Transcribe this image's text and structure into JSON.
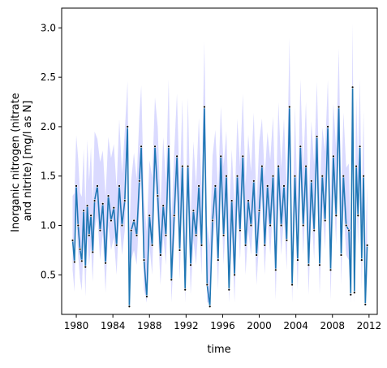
{
  "chart_data": {
    "type": "line",
    "xlabel": "time",
    "ylabel_lines": [
      "Inorganic nitrogen (nitrate",
      "and nitrite) [mg/l as N]"
    ],
    "xlim": [
      1978.4,
      2012.9
    ],
    "ylim": [
      0.1,
      3.2
    ],
    "x_ticks": [
      1980,
      1984,
      1988,
      1992,
      1996,
      2000,
      2004,
      2008,
      2012
    ],
    "y_ticks": [
      0.5,
      1.0,
      1.5,
      2.0,
      2.5,
      3.0
    ],
    "x_tick_labels": [
      "1980",
      "1984",
      "1988",
      "1992",
      "1996",
      "2000",
      "2004",
      "2008",
      "2012"
    ],
    "y_tick_labels": [
      "0.5",
      "1.0",
      "1.5",
      "2.0",
      "2.5",
      "3.0"
    ],
    "grid": false,
    "colors": {
      "line": "#1f77b4",
      "band": "#d4d4ff",
      "points": "#000000"
    },
    "series": [
      {
        "values": [
          [
            1979.6,
            0.85
          ],
          [
            1979.8,
            0.63
          ],
          [
            1980.0,
            1.4
          ],
          [
            1980.2,
            1.0
          ],
          [
            1980.4,
            0.76
          ],
          [
            1980.6,
            0.64
          ],
          [
            1980.8,
            1.15
          ],
          [
            1981.0,
            0.58
          ],
          [
            1981.2,
            1.2
          ],
          [
            1981.4,
            0.9
          ],
          [
            1981.6,
            1.1
          ],
          [
            1981.8,
            0.73
          ],
          [
            1982.0,
            1.25
          ],
          [
            1982.3,
            1.4
          ],
          [
            1982.6,
            0.95
          ],
          [
            1982.9,
            1.22
          ],
          [
            1983.2,
            0.62
          ],
          [
            1983.5,
            1.3
          ],
          [
            1983.8,
            1.05
          ],
          [
            1984.1,
            1.18
          ],
          [
            1984.4,
            0.8
          ],
          [
            1984.7,
            1.4
          ],
          [
            1985.0,
            1.0
          ],
          [
            1985.3,
            1.25
          ],
          [
            1985.6,
            2.0
          ],
          [
            1985.8,
            0.18
          ],
          [
            1986.0,
            0.95
          ],
          [
            1986.3,
            1.05
          ],
          [
            1986.6,
            0.9
          ],
          [
            1986.9,
            1.45
          ],
          [
            1987.1,
            1.8
          ],
          [
            1987.4,
            0.65
          ],
          [
            1987.7,
            0.28
          ],
          [
            1988.0,
            1.1
          ],
          [
            1988.3,
            0.8
          ],
          [
            1988.6,
            1.8
          ],
          [
            1988.9,
            1.3
          ],
          [
            1989.2,
            0.7
          ],
          [
            1989.5,
            1.2
          ],
          [
            1989.8,
            0.9
          ],
          [
            1990.1,
            1.8
          ],
          [
            1990.4,
            0.45
          ],
          [
            1990.7,
            1.1
          ],
          [
            1991.0,
            1.7
          ],
          [
            1991.3,
            0.75
          ],
          [
            1991.6,
            1.6
          ],
          [
            1991.9,
            0.35
          ],
          [
            1992.2,
            1.6
          ],
          [
            1992.5,
            0.6
          ],
          [
            1992.8,
            1.15
          ],
          [
            1993.1,
            0.9
          ],
          [
            1993.4,
            1.4
          ],
          [
            1993.7,
            0.8
          ],
          [
            1994.0,
            2.2
          ],
          [
            1994.3,
            0.4
          ],
          [
            1994.6,
            0.18
          ],
          [
            1994.9,
            1.05
          ],
          [
            1995.2,
            1.4
          ],
          [
            1995.5,
            0.65
          ],
          [
            1995.8,
            1.7
          ],
          [
            1996.1,
            0.9
          ],
          [
            1996.4,
            1.5
          ],
          [
            1996.7,
            0.35
          ],
          [
            1997.0,
            1.25
          ],
          [
            1997.3,
            0.5
          ],
          [
            1997.6,
            1.5
          ],
          [
            1997.9,
            0.95
          ],
          [
            1998.2,
            1.7
          ],
          [
            1998.5,
            0.8
          ],
          [
            1998.8,
            1.25
          ],
          [
            1999.1,
            1.0
          ],
          [
            1999.4,
            1.45
          ],
          [
            1999.7,
            0.7
          ],
          [
            2000.0,
            1.15
          ],
          [
            2000.3,
            1.6
          ],
          [
            2000.6,
            0.8
          ],
          [
            2000.9,
            1.4
          ],
          [
            2001.2,
            1.0
          ],
          [
            2001.5,
            1.5
          ],
          [
            2001.8,
            0.55
          ],
          [
            2002.1,
            1.6
          ],
          [
            2002.4,
            1.0
          ],
          [
            2002.7,
            1.4
          ],
          [
            2003.0,
            0.85
          ],
          [
            2003.3,
            2.2
          ],
          [
            2003.6,
            0.4
          ],
          [
            2003.9,
            1.5
          ],
          [
            2004.2,
            0.65
          ],
          [
            2004.5,
            1.8
          ],
          [
            2004.8,
            1.0
          ],
          [
            2005.1,
            1.6
          ],
          [
            2005.4,
            0.6
          ],
          [
            2005.7,
            1.45
          ],
          [
            2006.0,
            0.95
          ],
          [
            2006.3,
            1.9
          ],
          [
            2006.6,
            0.6
          ],
          [
            2006.9,
            1.5
          ],
          [
            2007.2,
            1.05
          ],
          [
            2007.5,
            2.0
          ],
          [
            2007.8,
            0.55
          ],
          [
            2008.1,
            1.7
          ],
          [
            2008.4,
            1.1
          ],
          [
            2008.7,
            2.2
          ],
          [
            2008.95,
            0.7
          ],
          [
            2009.2,
            1.5
          ],
          [
            2009.5,
            1.0
          ],
          [
            2009.8,
            0.95
          ],
          [
            2010.0,
            0.3
          ],
          [
            2010.2,
            2.4
          ],
          [
            2010.4,
            0.32
          ],
          [
            2010.6,
            1.6
          ],
          [
            2010.8,
            1.1
          ],
          [
            2011.0,
            1.8
          ],
          [
            2011.2,
            0.65
          ],
          [
            2011.4,
            1.5
          ],
          [
            2011.6,
            0.2
          ],
          [
            2011.8,
            0.8
          ]
        ]
      }
    ]
  }
}
